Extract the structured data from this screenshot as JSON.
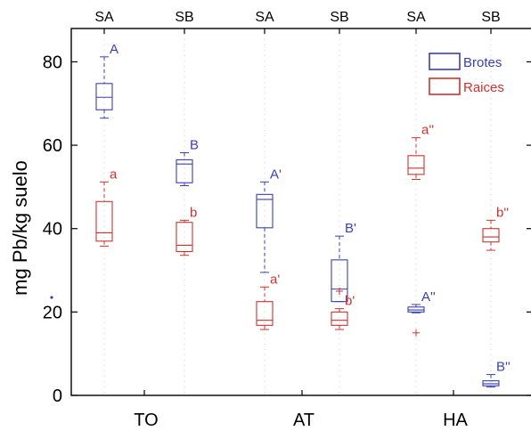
{
  "chart_data": {
    "type": "box",
    "ylabel": "mg Pb/kg suelo",
    "ylim": [
      0,
      88
    ],
    "yticks": [
      0,
      20,
      40,
      60,
      80
    ],
    "groups": [
      "TO",
      "AT",
      "HA"
    ],
    "subgroups": [
      "SA",
      "SB",
      "SA",
      "SB",
      "SA",
      "SB"
    ],
    "legend": {
      "position": "top-right",
      "entries": [
        {
          "name": "Brotes",
          "color": "#3a3fb0"
        },
        {
          "name": "Raices",
          "color": "#d0312d"
        }
      ]
    },
    "series": [
      {
        "name": "Brotes",
        "color": "#3a3fb0",
        "boxes": [
          {
            "subgroup": 0,
            "whisker_low": 66.5,
            "q1": 68.5,
            "median": 71.5,
            "q3": 74.8,
            "whisker_high": 81.2,
            "letter": "A",
            "outliers": []
          },
          {
            "subgroup": 1,
            "whisker_low": 50.3,
            "q1": 51.0,
            "median": 55.5,
            "q3": 56.5,
            "whisker_high": 58.2,
            "letter": "B",
            "outliers": []
          },
          {
            "subgroup": 2,
            "whisker_low": 29.5,
            "q1": 40.2,
            "median": 47.0,
            "q3": 48.2,
            "whisker_high": 51.2,
            "letter": "A'",
            "outliers": []
          },
          {
            "subgroup": 3,
            "whisker_low": 22.5,
            "q1": 22.5,
            "median": 25.5,
            "q3": 32.5,
            "whisker_high": 38.2,
            "letter": "B'",
            "outliers": []
          },
          {
            "subgroup": 4,
            "whisker_low": 19.8,
            "q1": 20.0,
            "median": 20.5,
            "q3": 21.2,
            "whisker_high": 21.8,
            "letter": "A''",
            "outliers": []
          },
          {
            "subgroup": 5,
            "whisker_low": 2.0,
            "q1": 2.3,
            "median": 2.8,
            "q3": 3.5,
            "whisker_high": 5.0,
            "letter": "B''",
            "outliers": []
          }
        ]
      },
      {
        "name": "Raices",
        "color": "#d0312d",
        "boxes": [
          {
            "subgroup": 0,
            "whisker_low": 35.8,
            "q1": 37.0,
            "median": 39.0,
            "q3": 46.5,
            "whisker_high": 51.2,
            "letter": "a",
            "outliers": []
          },
          {
            "subgroup": 1,
            "whisker_low": 33.6,
            "q1": 34.5,
            "median": 36.0,
            "q3": 41.5,
            "whisker_high": 42.0,
            "letter": "b",
            "outliers": []
          },
          {
            "subgroup": 2,
            "whisker_low": 15.8,
            "q1": 16.8,
            "median": 18.0,
            "q3": 22.5,
            "whisker_high": 26.0,
            "letter": "a'",
            "outliers": []
          },
          {
            "subgroup": 3,
            "whisker_low": 15.8,
            "q1": 16.8,
            "median": 18.0,
            "q3": 20.0,
            "whisker_high": 20.8,
            "letter": "b'",
            "outliers": [
              25.0
            ]
          },
          {
            "subgroup": 4,
            "whisker_low": 51.8,
            "q1": 53.0,
            "median": 54.5,
            "q3": 57.5,
            "whisker_high": 61.8,
            "letter": "a''",
            "outliers": [
              15.0
            ]
          },
          {
            "subgroup": 5,
            "whisker_low": 34.8,
            "q1": 36.8,
            "median": 38.0,
            "q3": 40.0,
            "whisker_high": 42.0,
            "letter": "b''",
            "outliers": []
          }
        ]
      }
    ]
  }
}
